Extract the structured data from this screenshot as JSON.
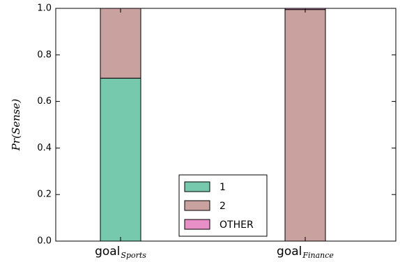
{
  "chart_data": {
    "type": "bar",
    "stacked": true,
    "categories": [
      {
        "main": "goal",
        "sub": "Sports"
      },
      {
        "main": "goal",
        "sub": "Finance"
      }
    ],
    "series": [
      {
        "name": "1",
        "color": "#77c9ad",
        "values": [
          0.7,
          0.0
        ]
      },
      {
        "name": "2",
        "color": "#c9a19f",
        "values": [
          0.3,
          0.995
        ]
      },
      {
        "name": "OTHER",
        "color": "#e88fc8",
        "values": [
          0.0,
          0.005
        ]
      }
    ],
    "ylabel": "Pr(Sense)",
    "ylim": [
      0,
      1.0
    ],
    "yticks": [
      "0.0",
      "0.2",
      "0.4",
      "0.6",
      "0.8",
      "1.0"
    ],
    "legend_position": "lower-center",
    "grid": false
  }
}
